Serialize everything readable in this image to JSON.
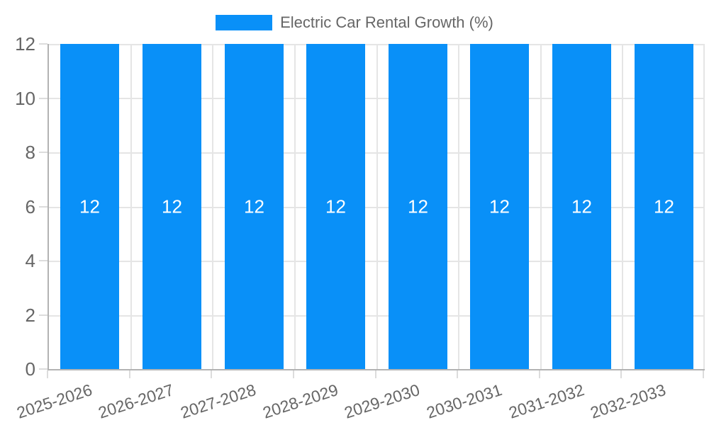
{
  "chart_data": {
    "type": "bar",
    "title": "Electric Car Rental Growth (%)",
    "legend": [
      "Electric Car Rental Growth (%)"
    ],
    "legend_position": "top",
    "categories": [
      "2025-2026",
      "2026-2027",
      "2027-2028",
      "2028-2029",
      "2029-2030",
      "2030-2031",
      "2031-2032",
      "2032-2033"
    ],
    "values": [
      12,
      12,
      12,
      12,
      12,
      12,
      12,
      12
    ],
    "xlabel": "",
    "ylabel": "",
    "ylim": [
      0,
      12
    ],
    "yticks": [
      0,
      2,
      4,
      6,
      8,
      10,
      12
    ],
    "grid": true,
    "x_tick_rotation_deg": -18
  },
  "colors": {
    "bar": "#0990f8",
    "bar_label": "#ffffff",
    "grid": "#e5e5e5",
    "tick": "#dcdcdc",
    "axis_border": "#b3b3b3",
    "tick_text": "#666666",
    "legend_text": "#666666",
    "background": "#ffffff"
  }
}
